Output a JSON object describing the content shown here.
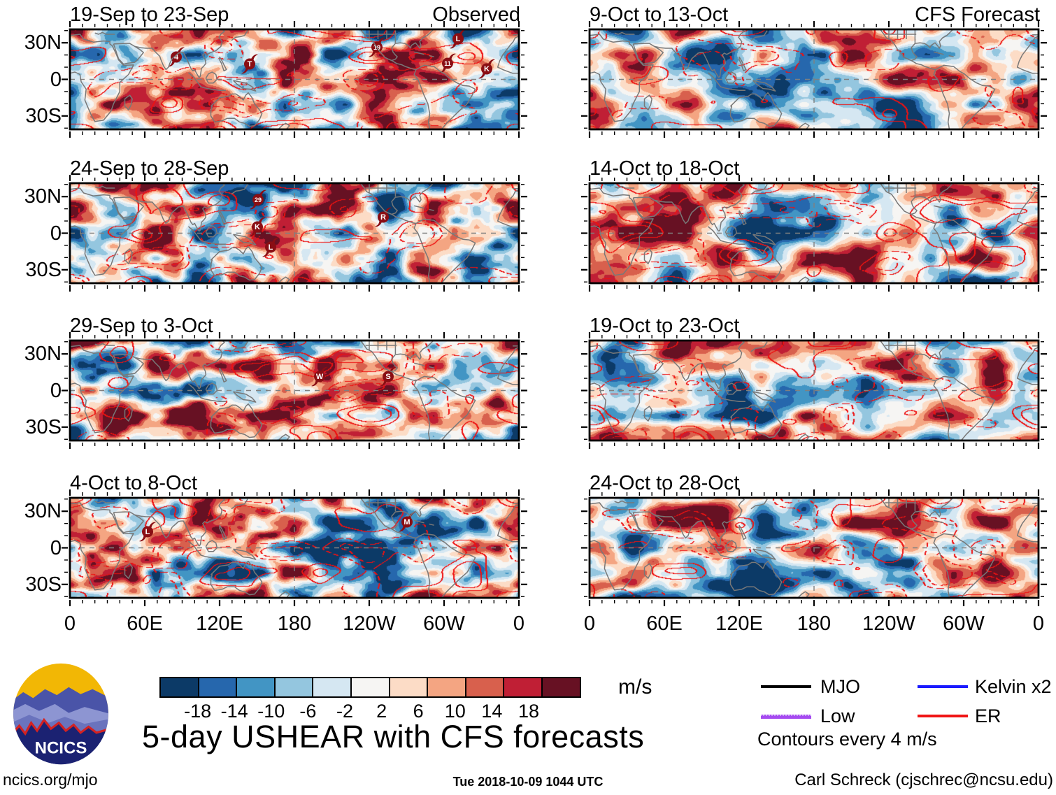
{
  "chart_data": {
    "type": "heatmap",
    "title": "5-day USHEAR with CFS forecasts",
    "units": "m/s",
    "x_axis": {
      "ticks": [
        "0",
        "60E",
        "120E",
        "180",
        "120W",
        "60W",
        "0"
      ],
      "tick_lons_deg_east": [
        0,
        60,
        120,
        180,
        240,
        300,
        360
      ],
      "range_deg_east": [
        0,
        360
      ],
      "minor_tick_step_deg": 10
    },
    "y_axis": {
      "ticks": [
        "30N",
        "0",
        "30S"
      ],
      "tick_lats_deg": [
        30,
        0,
        -30
      ],
      "range_deg": [
        -41,
        41
      ],
      "minor_tick_step_deg": 10
    },
    "colorbar": {
      "levels": [
        -18,
        -14,
        -10,
        -6,
        -2,
        2,
        6,
        10,
        14,
        18
      ],
      "colors": [
        "#0c3a67",
        "#2667ad",
        "#4295c4",
        "#94c6df",
        "#d5e7f2",
        "#f6f5f3",
        "#fcdcc6",
        "#f4a582",
        "#d8604d",
        "#c01f35",
        "#671123"
      ],
      "unit": "m/s"
    },
    "contour_note": "Contours every 4 m/s",
    "legend": {
      "items": [
        {
          "label": "MJO",
          "color": "#000000"
        },
        {
          "label": "Low",
          "color": "#a64bf0"
        },
        {
          "label": "Kelvin x2",
          "color": "#1a1aff"
        },
        {
          "label": "ER",
          "color": "#f01515"
        }
      ]
    },
    "panels": [
      {
        "title": "19-Sep to 23-Sep",
        "tag": "Observed",
        "storms": [
          {
            "label": "4",
            "lon": 85,
            "lat": 17
          },
          {
            "label": "T",
            "lon": 144,
            "lat": 11
          },
          {
            "label": "19",
            "lon": 246,
            "lat": 25
          },
          {
            "label": "L",
            "lon": 311,
            "lat": 32
          },
          {
            "label": "11",
            "lon": 303,
            "lat": 12
          },
          {
            "label": "K",
            "lon": 334,
            "lat": 7
          }
        ]
      },
      {
        "title": "24-Sep to 28-Sep",
        "tag": "",
        "storms": [
          {
            "label": "29",
            "lon": 151,
            "lat": 26
          },
          {
            "label": "K",
            "lon": 150,
            "lat": 4
          },
          {
            "label": "L",
            "lon": 161,
            "lat": -13
          },
          {
            "label": "R",
            "lon": 251,
            "lat": 12
          }
        ]
      },
      {
        "title": "29-Sep to 3-Oct",
        "tag": "",
        "storms": [
          {
            "label": "W",
            "lon": 200,
            "lat": 10
          },
          {
            "label": "S",
            "lon": 255,
            "lat": 10
          }
        ]
      },
      {
        "title": "4-Oct to 8-Oct",
        "tag": "",
        "storms": [
          {
            "label": "L",
            "lon": 62,
            "lat": 12
          },
          {
            "label": "M",
            "lon": 270,
            "lat": 20
          }
        ]
      },
      {
        "title": "9-Oct to 13-Oct",
        "tag": "CFS Forecast",
        "storms": []
      },
      {
        "title": "14-Oct to 18-Oct",
        "tag": "",
        "storms": []
      },
      {
        "title": "19-Oct to 23-Oct",
        "tag": "",
        "storms": []
      },
      {
        "title": "24-Oct to 28-Oct",
        "tag": "",
        "storms": []
      }
    ]
  },
  "branding": {
    "logo_text": "NCICS",
    "site": "ncics.org/mjo"
  },
  "footer": {
    "timestamp": "Tue 2018-10-09 1044 UTC",
    "credit": "Carl Schreck (cjschrec@ncsu.edu)"
  }
}
